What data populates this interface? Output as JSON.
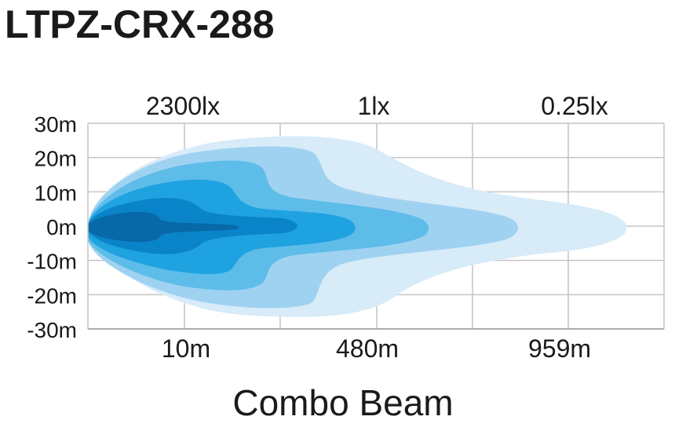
{
  "title": "LTPZ-CRX-288",
  "caption": "Combo Beam",
  "chart_data": {
    "type": "area",
    "title": "LTPZ-CRX-288",
    "caption": "Combo Beam",
    "y_ticks": [
      "30m",
      "20m",
      "10m",
      "0m",
      "-10m",
      "-20m",
      "-30m"
    ],
    "y_values": [
      30,
      20,
      10,
      0,
      -10,
      -20,
      -30
    ],
    "ylim": [
      -30,
      30
    ],
    "bottom_labels": [
      "10m",
      "480m",
      "959m"
    ],
    "top_labels": [
      "2300lx",
      "1lx",
      "0.25lx"
    ],
    "grid": true,
    "colors": {
      "zone1": "#d7ebf8",
      "zone2": "#9fd2f1",
      "zone3": "#5ebce9",
      "zone4": "#1fa2e0",
      "zone5": "#0a84c8",
      "zone6": "#0869a8",
      "grid": "#c4c4c4",
      "text": "#1a1a1a"
    }
  }
}
